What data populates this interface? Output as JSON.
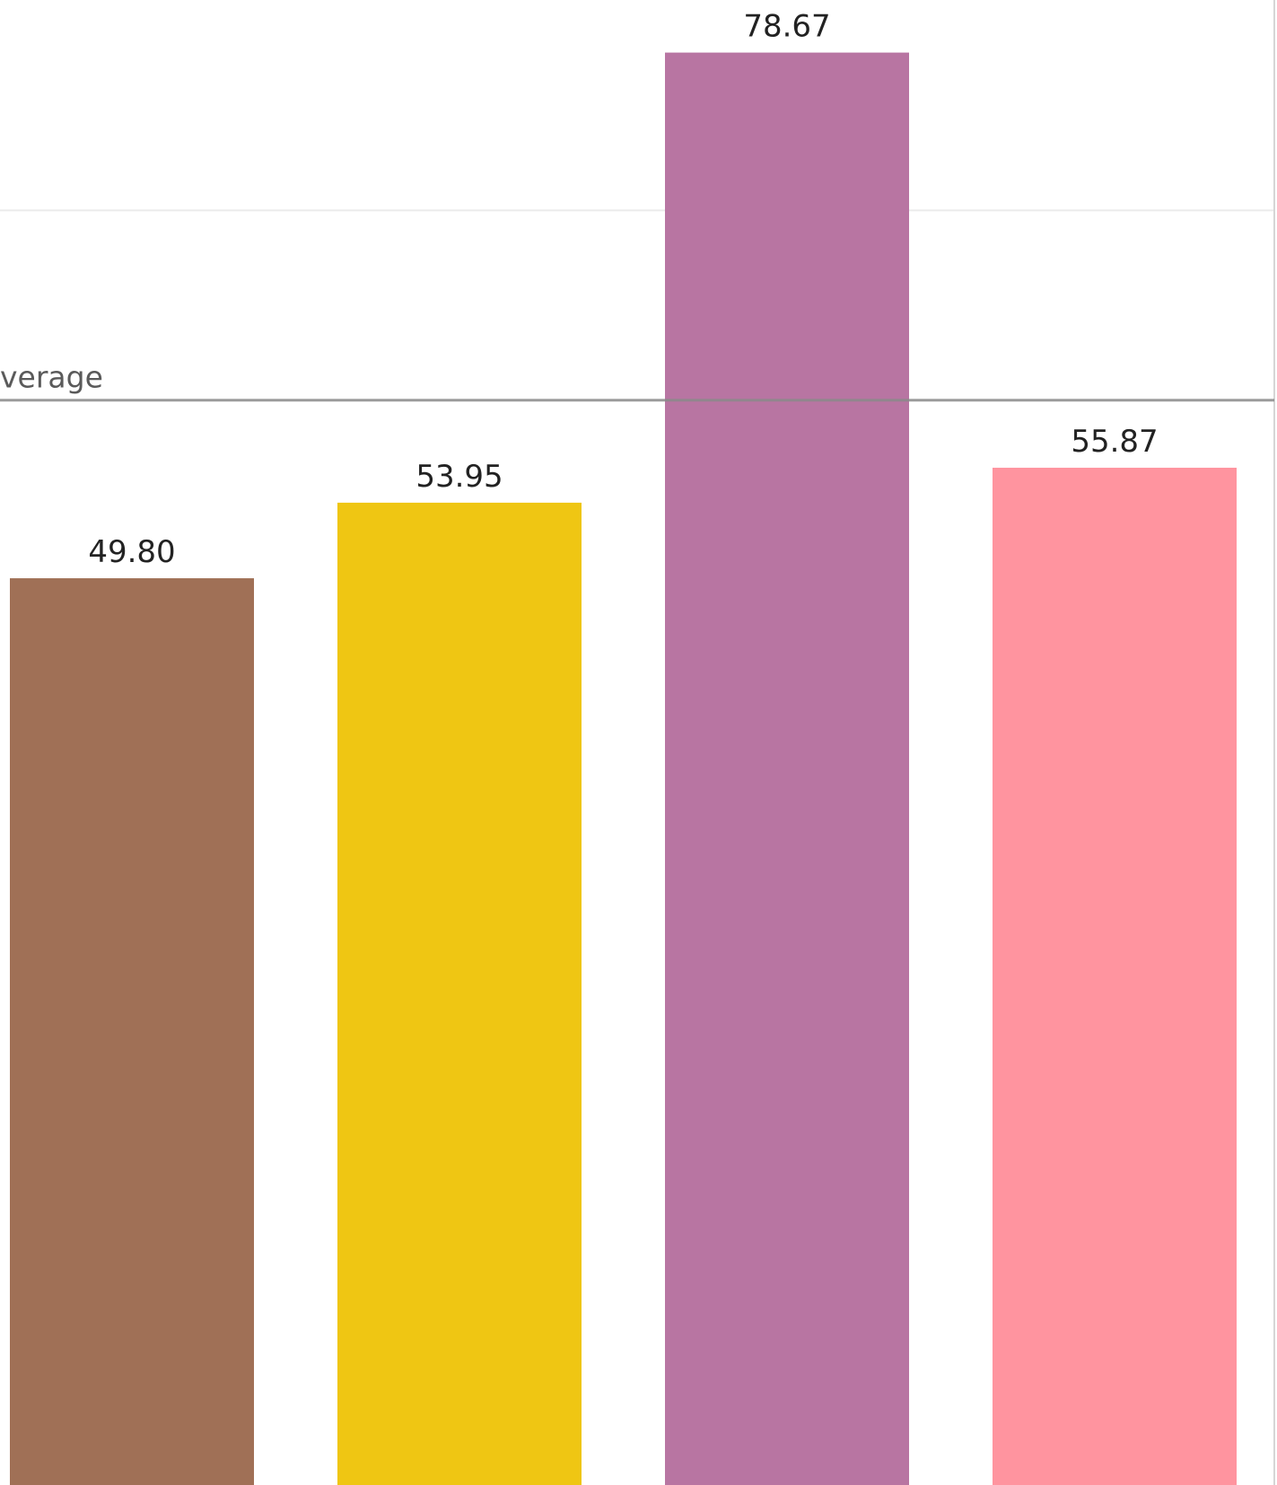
{
  "chart_data": {
    "type": "bar",
    "title": "",
    "xlabel": "",
    "ylabel": "",
    "categories": [
      "",
      "",
      "",
      ""
    ],
    "values": [
      49.8,
      53.95,
      78.67,
      55.87
    ],
    "value_labels": [
      "49.80",
      "53.95",
      "78.67",
      "55.87"
    ],
    "colors": [
      "#a07056",
      "#efc613",
      "#b875a2",
      "#ff949f"
    ],
    "reference_line": {
      "label": "verage",
      "value": 59.58,
      "color": "#8a8a8a"
    },
    "gridlines": [
      70,
      89
    ],
    "grid": true,
    "legend": "none"
  }
}
